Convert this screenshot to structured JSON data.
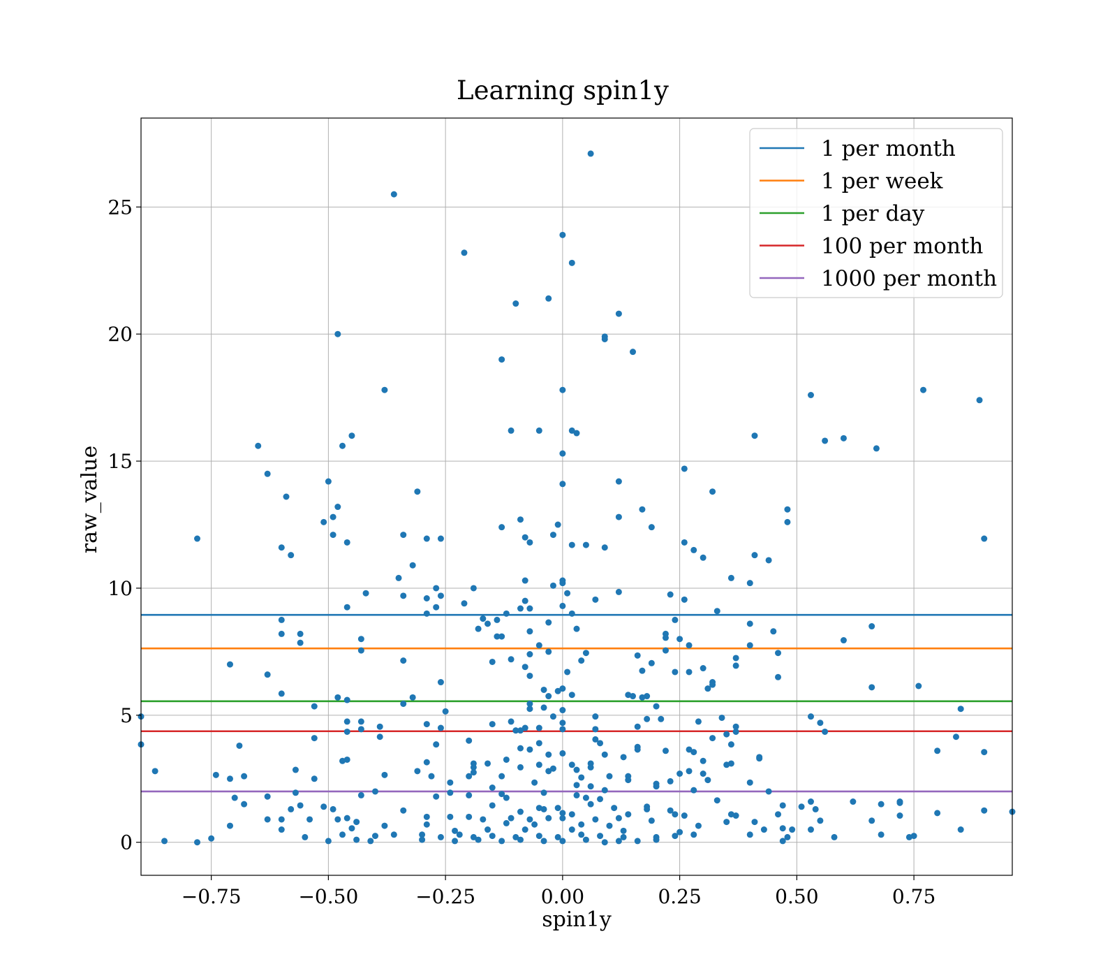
{
  "chart_data": {
    "type": "scatter",
    "title": "Learning spin1y",
    "xlabel": "spin1y",
    "ylabel": "raw_value",
    "xlim": [
      -0.9,
      0.96
    ],
    "ylim": [
      -1.3,
      28.5
    ],
    "xticks": [
      -0.75,
      -0.5,
      -0.25,
      0.0,
      0.25,
      0.5,
      0.75
    ],
    "xtick_labels": [
      "−0.75",
      "−0.50",
      "−0.25",
      "0.00",
      "0.25",
      "0.50",
      "0.75"
    ],
    "yticks": [
      0,
      5,
      10,
      15,
      20,
      25
    ],
    "ytick_labels": [
      "0",
      "5",
      "10",
      "15",
      "20",
      "25"
    ],
    "grid": true,
    "legend_position": "top-right",
    "point_color": "#1f77b4",
    "hlines": [
      {
        "name": "1 per month",
        "y": 8.95,
        "color": "#1f77b4"
      },
      {
        "name": "1 per week",
        "y": 7.63,
        "color": "#ff7f0e"
      },
      {
        "name": "1 per day",
        "y": 5.55,
        "color": "#2ca02c"
      },
      {
        "name": "100 per month",
        "y": 4.37,
        "color": "#d62728"
      },
      {
        "name": "1000 per month",
        "y": 2.0,
        "color": "#9467bd"
      }
    ],
    "points": [
      [
        0.06,
        27.1
      ],
      [
        -0.36,
        25.5
      ],
      [
        0.0,
        23.9
      ],
      [
        -0.21,
        23.2
      ],
      [
        0.02,
        22.8
      ],
      [
        -0.03,
        21.4
      ],
      [
        -0.1,
        21.2
      ],
      [
        0.12,
        20.8
      ],
      [
        -0.48,
        20.0
      ],
      [
        0.09,
        19.9
      ],
      [
        0.09,
        19.8
      ],
      [
        -0.13,
        19.0
      ],
      [
        0.15,
        19.3
      ],
      [
        -0.38,
        17.8
      ],
      [
        0.0,
        17.8
      ],
      [
        0.53,
        17.6
      ],
      [
        0.77,
        17.8
      ],
      [
        0.89,
        17.4
      ],
      [
        -0.11,
        16.2
      ],
      [
        -0.05,
        16.2
      ],
      [
        0.02,
        16.2
      ],
      [
        0.03,
        16.1
      ],
      [
        -0.45,
        16.0
      ],
      [
        0.41,
        16.0
      ],
      [
        0.6,
        15.9
      ],
      [
        0.56,
        15.8
      ],
      [
        -0.65,
        15.6
      ],
      [
        -0.47,
        15.6
      ],
      [
        0.67,
        15.5
      ],
      [
        0.0,
        15.3
      ],
      [
        -0.63,
        14.5
      ],
      [
        0.26,
        14.7
      ],
      [
        -0.5,
        14.2
      ],
      [
        0.12,
        14.2
      ],
      [
        0.0,
        14.1
      ],
      [
        -0.31,
        13.8
      ],
      [
        0.32,
        13.8
      ],
      [
        -0.59,
        13.6
      ],
      [
        -0.48,
        13.2
      ],
      [
        0.17,
        13.1
      ],
      [
        0.48,
        13.1
      ],
      [
        -0.49,
        12.8
      ],
      [
        -0.51,
        12.6
      ],
      [
        0.12,
        12.8
      ],
      [
        -0.09,
        12.7
      ],
      [
        0.48,
        12.6
      ],
      [
        -0.01,
        12.5
      ],
      [
        0.19,
        12.4
      ],
      [
        -0.13,
        12.4
      ],
      [
        -0.34,
        12.1
      ],
      [
        -0.49,
        12.1
      ],
      [
        -0.08,
        12.0
      ],
      [
        -0.02,
        12.1
      ],
      [
        -0.78,
        11.95
      ],
      [
        -0.29,
        11.95
      ],
      [
        -0.26,
        11.95
      ],
      [
        0.9,
        11.95
      ],
      [
        -0.46,
        11.8
      ],
      [
        0.26,
        11.8
      ],
      [
        -0.07,
        11.8
      ],
      [
        0.02,
        11.7
      ],
      [
        0.05,
        11.7
      ],
      [
        0.09,
        11.6
      ],
      [
        -0.6,
        11.6
      ],
      [
        -0.58,
        11.3
      ],
      [
        0.28,
        11.5
      ],
      [
        0.41,
        11.3
      ],
      [
        0.44,
        11.1
      ],
      [
        0.3,
        11.2
      ],
      [
        -0.32,
        10.9
      ],
      [
        -0.35,
        10.4
      ],
      [
        -0.08,
        10.3
      ],
      [
        0.0,
        10.3
      ],
      [
        0.0,
        10.2
      ],
      [
        -0.02,
        10.1
      ],
      [
        0.36,
        10.4
      ],
      [
        0.4,
        10.2
      ],
      [
        -0.27,
        10.0
      ],
      [
        -0.19,
        10.0
      ],
      [
        -0.42,
        9.8
      ],
      [
        0.01,
        9.8
      ],
      [
        0.12,
        9.85
      ],
      [
        0.23,
        9.75
      ],
      [
        -0.34,
        9.7
      ],
      [
        -0.26,
        9.7
      ],
      [
        -0.29,
        9.6
      ],
      [
        0.07,
        9.55
      ],
      [
        0.26,
        9.55
      ],
      [
        -0.08,
        9.5
      ],
      [
        -0.21,
        9.4
      ],
      [
        0.0,
        9.3
      ],
      [
        -0.46,
        9.25
      ],
      [
        -0.27,
        9.25
      ],
      [
        -0.09,
        9.2
      ],
      [
        -0.07,
        9.2
      ],
      [
        0.33,
        9.1
      ],
      [
        -0.29,
        9.0
      ],
      [
        -0.12,
        9.0
      ],
      [
        0.02,
        9.0
      ],
      [
        -0.17,
        8.8
      ],
      [
        -0.14,
        8.75
      ],
      [
        -0.6,
        8.75
      ],
      [
        -0.16,
        8.6
      ],
      [
        -0.03,
        8.65
      ],
      [
        0.24,
        8.75
      ],
      [
        0.4,
        8.6
      ],
      [
        0.66,
        8.5
      ],
      [
        -0.18,
        8.4
      ],
      [
        0.03,
        8.4
      ],
      [
        -0.07,
        8.3
      ],
      [
        0.45,
        8.3
      ],
      [
        -0.6,
        8.2
      ],
      [
        -0.56,
        8.2
      ],
      [
        0.22,
        8.2
      ],
      [
        -0.14,
        8.1
      ],
      [
        -0.13,
        8.1
      ],
      [
        0.22,
        8.05
      ],
      [
        0.25,
        8.0
      ],
      [
        -0.43,
        8.0
      ],
      [
        0.6,
        7.95
      ],
      [
        -0.56,
        7.85
      ],
      [
        -0.05,
        7.75
      ],
      [
        0.27,
        7.75
      ],
      [
        0.4,
        7.75
      ],
      [
        -0.43,
        7.55
      ],
      [
        0.22,
        7.55
      ],
      [
        -0.03,
        7.5
      ],
      [
        0.46,
        7.45
      ],
      [
        0.05,
        7.45
      ],
      [
        -0.07,
        7.4
      ],
      [
        0.16,
        7.35
      ],
      [
        0.37,
        7.25
      ],
      [
        -0.34,
        7.15
      ],
      [
        -0.11,
        7.2
      ],
      [
        0.04,
        7.15
      ],
      [
        -0.15,
        7.1
      ],
      [
        0.19,
        7.05
      ],
      [
        -0.71,
        7.0
      ],
      [
        0.37,
        6.95
      ],
      [
        -0.08,
        6.9
      ],
      [
        0.3,
        6.85
      ],
      [
        0.17,
        6.75
      ],
      [
        0.24,
        6.7
      ],
      [
        0.27,
        6.7
      ],
      [
        0.01,
        6.7
      ],
      [
        -0.63,
        6.6
      ],
      [
        -0.07,
        6.55
      ],
      [
        0.46,
        6.5
      ],
      [
        -0.26,
        6.3
      ],
      [
        0.32,
        6.3
      ],
      [
        0.32,
        6.2
      ],
      [
        0.66,
        6.1
      ],
      [
        0.76,
        6.15
      ],
      [
        -0.04,
        6.0
      ],
      [
        0.31,
        6.05
      ],
      [
        0.0,
        6.05
      ],
      [
        -0.01,
        5.95
      ],
      [
        -0.6,
        5.85
      ],
      [
        0.02,
        5.8
      ],
      [
        0.14,
        5.8
      ],
      [
        0.15,
        5.75
      ],
      [
        -0.03,
        5.75
      ],
      [
        0.18,
        5.75
      ],
      [
        -0.48,
        5.7
      ],
      [
        -0.32,
        5.7
      ],
      [
        -0.46,
        5.6
      ],
      [
        0.17,
        5.7
      ],
      [
        -0.07,
        5.45
      ],
      [
        -0.34,
        5.45
      ],
      [
        -0.53,
        5.35
      ],
      [
        0.2,
        5.35
      ],
      [
        -0.07,
        5.25
      ],
      [
        -0.04,
        5.3
      ],
      [
        0.0,
        5.2
      ],
      [
        -0.25,
        5.15
      ],
      [
        0.85,
        5.25
      ],
      [
        -0.9,
        4.95
      ],
      [
        0.07,
        4.95
      ],
      [
        -0.02,
        4.95
      ],
      [
        0.34,
        4.9
      ],
      [
        0.53,
        4.95
      ],
      [
        0.18,
        4.85
      ],
      [
        0.21,
        4.85
      ],
      [
        0.29,
        4.75
      ],
      [
        0.55,
        4.7
      ],
      [
        -0.11,
        4.75
      ],
      [
        -0.43,
        4.75
      ],
      [
        -0.46,
        4.75
      ],
      [
        0.0,
        4.7
      ],
      [
        -0.29,
        4.65
      ],
      [
        -0.15,
        4.65
      ],
      [
        0.16,
        4.55
      ],
      [
        0.37,
        4.55
      ],
      [
        -0.39,
        4.55
      ],
      [
        -0.43,
        4.45
      ],
      [
        -0.26,
        4.5
      ],
      [
        -0.05,
        4.5
      ],
      [
        -0.08,
        4.5
      ],
      [
        0.07,
        4.45
      ],
      [
        0.0,
        4.45
      ],
      [
        0.37,
        4.35
      ],
      [
        0.56,
        4.35
      ],
      [
        -0.1,
        4.4
      ],
      [
        -0.09,
        4.4
      ],
      [
        -0.46,
        4.35
      ],
      [
        0.35,
        4.25
      ],
      [
        0.32,
        4.1
      ],
      [
        -0.53,
        4.1
      ],
      [
        -0.39,
        4.15
      ],
      [
        0.07,
        4.05
      ],
      [
        0.84,
        4.15
      ],
      [
        -0.2,
        4.0
      ],
      [
        0.08,
        3.9
      ],
      [
        -0.05,
        3.9
      ],
      [
        -0.27,
        3.85
      ],
      [
        0.36,
        3.85
      ],
      [
        -0.9,
        3.85
      ],
      [
        -0.69,
        3.8
      ],
      [
        -0.09,
        3.7
      ],
      [
        -0.07,
        3.65
      ],
      [
        0.16,
        3.75
      ],
      [
        0.22,
        3.6
      ],
      [
        0.27,
        3.65
      ],
      [
        0.28,
        3.55
      ],
      [
        0.16,
        3.65
      ],
      [
        0.8,
        3.6
      ],
      [
        0.9,
        3.55
      ],
      [
        0.0,
        3.5
      ],
      [
        -0.03,
        3.45
      ],
      [
        0.09,
        3.45
      ],
      [
        0.13,
        3.35
      ],
      [
        0.42,
        3.35
      ],
      [
        0.42,
        3.3
      ],
      [
        -0.46,
        3.25
      ],
      [
        -0.47,
        3.2
      ],
      [
        -0.12,
        3.25
      ],
      [
        -0.29,
        3.15
      ],
      [
        0.3,
        3.2
      ],
      [
        -0.19,
        3.1
      ],
      [
        -0.16,
        3.1
      ],
      [
        0.06,
        3.1
      ],
      [
        -0.05,
        3.05
      ],
      [
        0.02,
        3.05
      ],
      [
        0.35,
        3.05
      ],
      [
        0.36,
        3.1
      ],
      [
        -0.19,
        2.95
      ],
      [
        -0.09,
        2.95
      ],
      [
        0.06,
        2.95
      ],
      [
        0.03,
        2.85
      ],
      [
        -0.03,
        2.8
      ],
      [
        -0.02,
        2.9
      ],
      [
        -0.57,
        2.85
      ],
      [
        -0.87,
        2.8
      ],
      [
        -0.31,
        2.8
      ],
      [
        -0.19,
        2.75
      ],
      [
        0.27,
        2.8
      ],
      [
        0.3,
        2.7
      ],
      [
        0.25,
        2.7
      ],
      [
        -0.74,
        2.65
      ],
      [
        -0.68,
        2.6
      ],
      [
        -0.38,
        2.65
      ],
      [
        -0.28,
        2.6
      ],
      [
        -0.2,
        2.6
      ],
      [
        0.1,
        2.6
      ],
      [
        -0.13,
        2.6
      ],
      [
        0.14,
        2.6
      ],
      [
        -0.71,
        2.5
      ],
      [
        -0.53,
        2.5
      ],
      [
        0.04,
        2.55
      ],
      [
        0.31,
        2.45
      ],
      [
        0.23,
        2.4
      ],
      [
        0.14,
        2.45
      ],
      [
        -0.24,
        2.35
      ],
      [
        0.4,
        2.35
      ],
      [
        0.2,
        2.3
      ],
      [
        -0.06,
        2.35
      ],
      [
        0.03,
        2.25
      ],
      [
        0.06,
        2.2
      ],
      [
        0.2,
        2.2
      ],
      [
        -0.15,
        2.15
      ],
      [
        0.28,
        2.05
      ],
      [
        0.09,
        2.05
      ],
      [
        -0.4,
        2.0
      ],
      [
        -0.24,
        1.95
      ],
      [
        -0.04,
        1.95
      ],
      [
        0.44,
        2.0
      ],
      [
        -0.13,
        1.9
      ],
      [
        -0.2,
        1.85
      ],
      [
        -0.43,
        1.85
      ],
      [
        0.03,
        1.85
      ],
      [
        -0.63,
        1.8
      ],
      [
        -0.57,
        1.95
      ],
      [
        -0.27,
        1.8
      ],
      [
        -0.12,
        1.75
      ],
      [
        0.05,
        1.75
      ],
      [
        0.08,
        1.7
      ],
      [
        -0.7,
        1.75
      ],
      [
        0.33,
        1.65
      ],
      [
        0.53,
        1.6
      ],
      [
        0.62,
        1.6
      ],
      [
        0.72,
        1.6
      ],
      [
        0.72,
        1.55
      ],
      [
        0.68,
        1.5
      ],
      [
        -0.68,
        1.5
      ],
      [
        -0.56,
        1.45
      ],
      [
        -0.51,
        1.4
      ],
      [
        0.18,
        1.4
      ],
      [
        0.06,
        1.5
      ],
      [
        -0.15,
        1.45
      ],
      [
        0.47,
        1.45
      ],
      [
        0.51,
        1.4
      ],
      [
        0.54,
        1.3
      ],
      [
        -0.58,
        1.3
      ],
      [
        -0.49,
        1.3
      ],
      [
        -0.05,
        1.35
      ],
      [
        -0.01,
        1.35
      ],
      [
        -0.04,
        1.3
      ],
      [
        0.11,
        1.35
      ],
      [
        0.18,
        1.3
      ],
      [
        0.23,
        1.25
      ],
      [
        -0.34,
        1.25
      ],
      [
        -0.09,
        1.2
      ],
      [
        0.8,
        1.15
      ],
      [
        0.9,
        1.25
      ],
      [
        0.96,
        1.2
      ],
      [
        0.0,
        1.15
      ],
      [
        0.02,
        1.1
      ],
      [
        0.14,
        1.1
      ],
      [
        0.24,
        1.1
      ],
      [
        0.26,
        1.05
      ],
      [
        0.36,
        1.1
      ],
      [
        0.37,
        1.05
      ],
      [
        0.46,
        1.1
      ],
      [
        0.72,
        1.05
      ],
      [
        -0.63,
        0.9
      ],
      [
        -0.6,
        0.9
      ],
      [
        -0.54,
        0.9
      ],
      [
        -0.48,
        0.9
      ],
      [
        -0.46,
        0.95
      ],
      [
        -0.29,
        1.0
      ],
      [
        -0.24,
        1.0
      ],
      [
        -0.2,
        1.0
      ],
      [
        -0.17,
        0.9
      ],
      [
        -0.11,
        0.95
      ],
      [
        -0.07,
        0.9
      ],
      [
        -0.03,
        0.95
      ],
      [
        0.0,
        0.95
      ],
      [
        0.07,
        0.9
      ],
      [
        0.12,
        0.95
      ],
      [
        0.19,
        0.85
      ],
      [
        0.35,
        0.8
      ],
      [
        0.41,
        0.8
      ],
      [
        0.55,
        0.85
      ],
      [
        0.66,
        0.85
      ],
      [
        -0.71,
        0.65
      ],
      [
        -0.44,
        0.8
      ],
      [
        -0.38,
        0.65
      ],
      [
        -0.29,
        0.7
      ],
      [
        -0.12,
        0.75
      ],
      [
        -0.06,
        0.7
      ],
      [
        0.04,
        0.7
      ],
      [
        0.1,
        0.65
      ],
      [
        0.29,
        0.65
      ],
      [
        0.47,
        0.55
      ],
      [
        -0.6,
        0.5
      ],
      [
        -0.45,
        0.55
      ],
      [
        -0.23,
        0.45
      ],
      [
        -0.16,
        0.5
      ],
      [
        -0.08,
        0.5
      ],
      [
        0.02,
        0.5
      ],
      [
        0.13,
        0.45
      ],
      [
        0.25,
        0.4
      ],
      [
        0.43,
        0.5
      ],
      [
        0.49,
        0.5
      ],
      [
        0.53,
        0.5
      ],
      [
        0.85,
        0.5
      ],
      [
        -0.55,
        0.2
      ],
      [
        -0.47,
        0.3
      ],
      [
        -0.4,
        0.25
      ],
      [
        -0.36,
        0.3
      ],
      [
        -0.3,
        0.3
      ],
      [
        -0.26,
        0.2
      ],
      [
        -0.22,
        0.3
      ],
      [
        -0.19,
        0.2
      ],
      [
        -0.15,
        0.25
      ],
      [
        -0.1,
        0.2
      ],
      [
        -0.05,
        0.25
      ],
      [
        -0.01,
        0.2
      ],
      [
        0.04,
        0.3
      ],
      [
        0.08,
        0.25
      ],
      [
        0.13,
        0.2
      ],
      [
        0.2,
        0.2
      ],
      [
        0.24,
        0.25
      ],
      [
        0.28,
        0.3
      ],
      [
        0.4,
        0.3
      ],
      [
        0.48,
        0.2
      ],
      [
        0.58,
        0.2
      ],
      [
        0.68,
        0.3
      ],
      [
        0.75,
        0.25
      ],
      [
        -0.85,
        0.05
      ],
      [
        -0.78,
        0.0
      ],
      [
        -0.75,
        0.15
      ],
      [
        -0.5,
        0.05
      ],
      [
        -0.44,
        0.1
      ],
      [
        -0.41,
        0.05
      ],
      [
        -0.3,
        0.1
      ],
      [
        -0.23,
        0.05
      ],
      [
        -0.18,
        0.1
      ],
      [
        -0.13,
        0.05
      ],
      [
        -0.09,
        0.1
      ],
      [
        -0.04,
        0.05
      ],
      [
        0.0,
        0.05
      ],
      [
        0.05,
        0.1
      ],
      [
        0.09,
        0.0
      ],
      [
        0.12,
        0.05
      ],
      [
        0.16,
        0.05
      ],
      [
        0.2,
        0.1
      ],
      [
        0.47,
        0.05
      ],
      [
        0.74,
        0.2
      ]
    ]
  }
}
